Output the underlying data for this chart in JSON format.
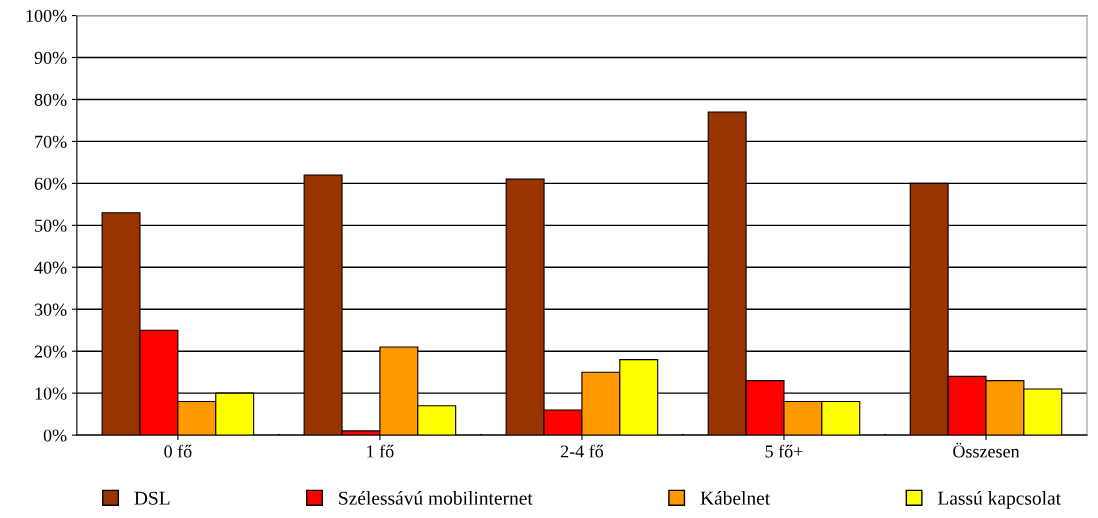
{
  "chart_data": {
    "type": "bar",
    "categories": [
      "0 fő",
      "1 fő",
      "2-4 fő",
      "5 fő+",
      "Összesen"
    ],
    "series": [
      {
        "name": "DSL",
        "color": "#993300",
        "values": [
          53,
          62,
          61,
          77,
          60
        ]
      },
      {
        "name": "Szélessávú mobilinternet",
        "color": "#ff0000",
        "values": [
          25,
          1,
          6,
          13,
          14
        ]
      },
      {
        "name": "Kábelnet",
        "color": "#ff9900",
        "values": [
          8,
          21,
          15,
          8,
          13
        ]
      },
      {
        "name": "Lassú kapcsolat",
        "color": "#ffff00",
        "values": [
          10,
          7,
          18,
          8,
          11
        ]
      }
    ],
    "ylim": [
      0,
      100
    ],
    "yticks": [
      {
        "value": 0,
        "label": "0%"
      },
      {
        "value": 10,
        "label": "10%"
      },
      {
        "value": 20,
        "label": "20%"
      },
      {
        "value": 30,
        "label": "30%"
      },
      {
        "value": 40,
        "label": "40%"
      },
      {
        "value": 50,
        "label": "50%"
      },
      {
        "value": 60,
        "label": "60%"
      },
      {
        "value": 70,
        "label": "70%"
      },
      {
        "value": 80,
        "label": "80%"
      },
      {
        "value": 90,
        "label": "90%"
      },
      {
        "value": 100,
        "label": "100%"
      }
    ],
    "grid": "y",
    "legend": "bottom"
  }
}
